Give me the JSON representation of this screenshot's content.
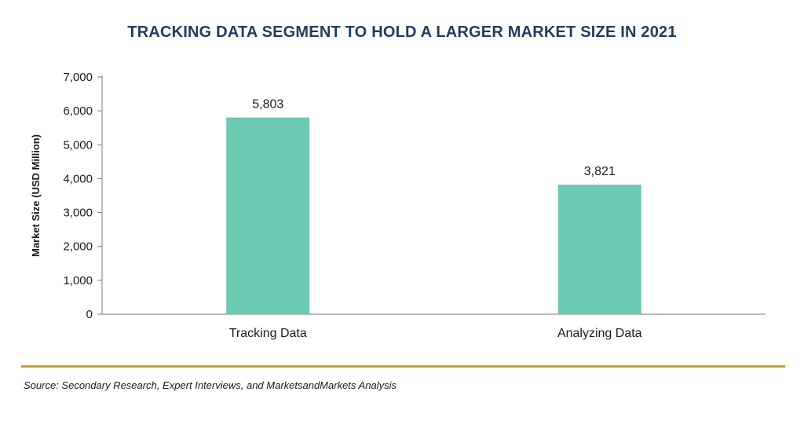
{
  "chart_data": {
    "type": "bar",
    "title": "TRACKING DATA SEGMENT TO HOLD A LARGER MARKET SIZE IN 2021",
    "ylabel": "Market Size (USD Million)",
    "xlabel": "",
    "categories": [
      "Tracking Data",
      "Analyzing Data"
    ],
    "values": [
      5803,
      3821
    ],
    "value_labels": [
      "5,803",
      "3,821"
    ],
    "ylim": [
      0,
      7000
    ],
    "yticks": [
      0,
      1000,
      2000,
      3000,
      4000,
      5000,
      6000,
      7000
    ],
    "ytick_labels": [
      "0",
      "1,000",
      "2,000",
      "3,000",
      "4,000",
      "5,000",
      "6,000",
      "7,000"
    ],
    "bar_color": "#6cc9b2",
    "grid": false,
    "legend": "none"
  },
  "colors": {
    "title": "#1f3d5c",
    "divider": "#c9a227",
    "bar": "#6cc9b2"
  },
  "source": "Source: Secondary Research, Expert Interviews, and MarketsandMarkets Analysis"
}
